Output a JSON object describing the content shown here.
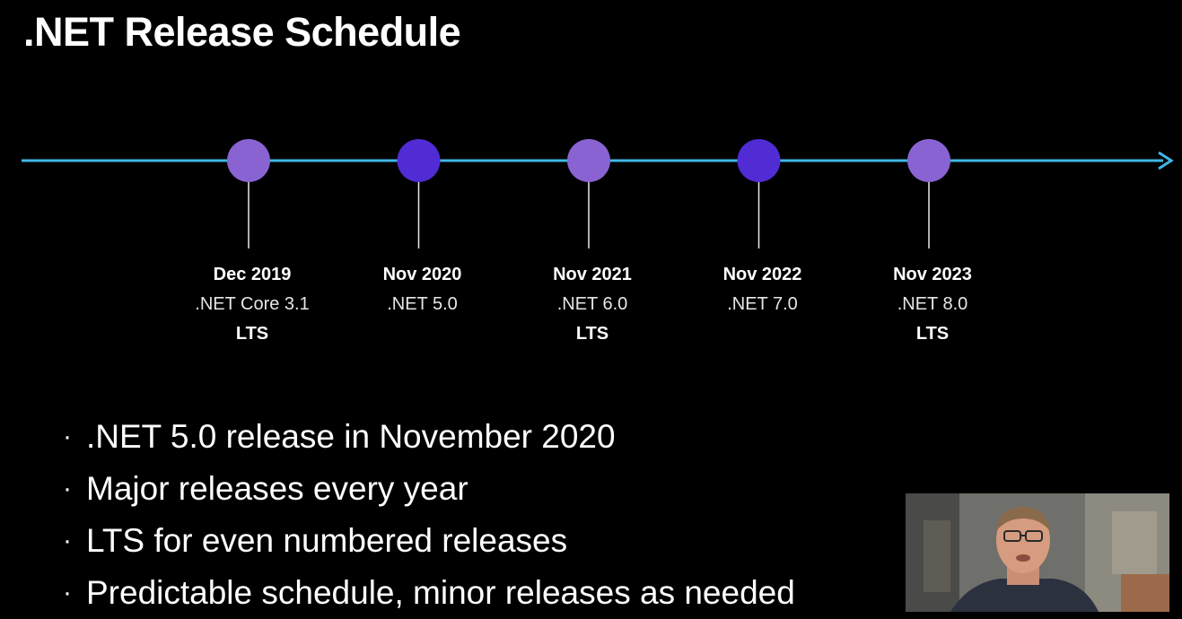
{
  "title": ".NET Release Schedule",
  "timeline": {
    "line_color": "#3fb8e4",
    "colors": {
      "lts": "#8a63d2",
      "current": "#512bd4"
    },
    "milestones": [
      {
        "date": "Dec 2019",
        "version": ".NET Core 3.1",
        "tag": "LTS",
        "kind": "lts"
      },
      {
        "date": "Nov 2020",
        "version": ".NET 5.0",
        "tag": "",
        "kind": "current"
      },
      {
        "date": "Nov 2021",
        "version": ".NET 6.0",
        "tag": "LTS",
        "kind": "lts"
      },
      {
        "date": "Nov 2022",
        "version": ".NET 7.0",
        "tag": "",
        "kind": "current"
      },
      {
        "date": "Nov 2023",
        "version": ".NET 8.0",
        "tag": "LTS",
        "kind": "lts"
      }
    ]
  },
  "bullets": [
    ".NET 5.0 release in November 2020",
    "Major releases every year",
    "LTS for even numbered releases",
    "Predictable schedule, minor releases as needed"
  ],
  "bullet_glyph": "·",
  "presenter_video": {
    "icon": "presenter-video-icon"
  }
}
